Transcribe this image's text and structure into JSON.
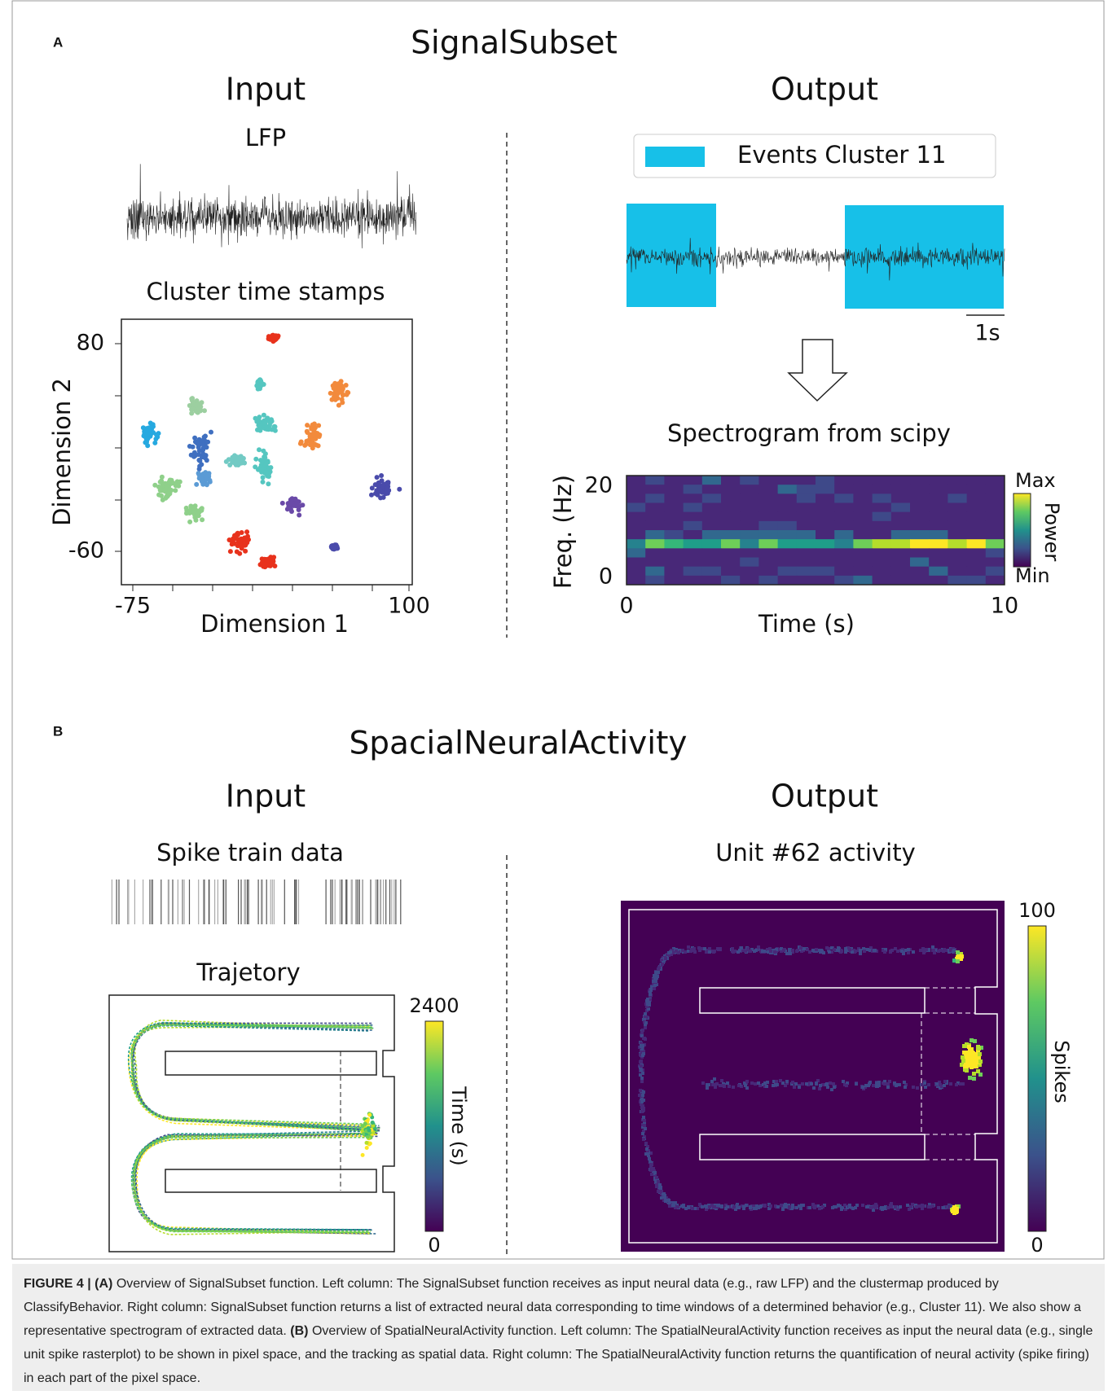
{
  "panel_a": {
    "label": "A",
    "title": "SignalSubset",
    "input_heading": "Input",
    "output_heading": "Output",
    "lfp_title": "LFP",
    "cluster_title": "Cluster time stamps",
    "scatter": {
      "y_label": "Dimension 2",
      "x_label": "Dimension 1",
      "yticks": [
        80,
        -60
      ],
      "xticks": [
        -75,
        100
      ]
    },
    "legend": "Events Cluster 11",
    "scale_bar": "1s",
    "spectrogram_title": "Spectrogram from scipy",
    "spectrogram": {
      "y_label": "Freq. (Hz)",
      "x_label": "Time (s)",
      "yticks": [
        20,
        0
      ],
      "xticks": [
        0,
        10
      ],
      "colorbar_label": "Power",
      "colorbar_max": "Max",
      "colorbar_min": "Min"
    }
  },
  "panel_b": {
    "label": "B",
    "title": "SpacialNeuralActivity",
    "input_heading": "Input",
    "output_heading": "Output",
    "spike_title": "Spike train data",
    "trajectory_title": "Trajetory",
    "trajectory_colorbar": {
      "label": "Time (s)",
      "max": 2400,
      "min": 0
    },
    "activity_title": "Unit #62 activity",
    "activity_colorbar": {
      "label": "Spikes",
      "max": 100,
      "min": 0
    }
  },
  "caption": {
    "label": "FIGURE 4 |",
    "a_label": "(A)",
    "a_text": "Overview of SignalSubset function. Left column: The SignalSubset function receives as input neural data (e.g., raw LFP) and the clustermap produced by ClassifyBehavior. Right column: SignalSubset function returns a list of extracted neural data corresponding to time windows of a determined behavior (e.g., Cluster 11). We also show a representative spectrogram of extracted data.",
    "b_label": "(B)",
    "b_text": "Overview of SpatialNeuralActivity function. Left column: The SpatialNeuralActivity function receives as input the neural data (e.g., single unit spike rasterplot) to be shown in pixel space, and the tracking as spatial data. Right column: The SpatialNeuralActivity function returns the quantification of neural activity (spike firing) in each part of the pixel space."
  }
}
